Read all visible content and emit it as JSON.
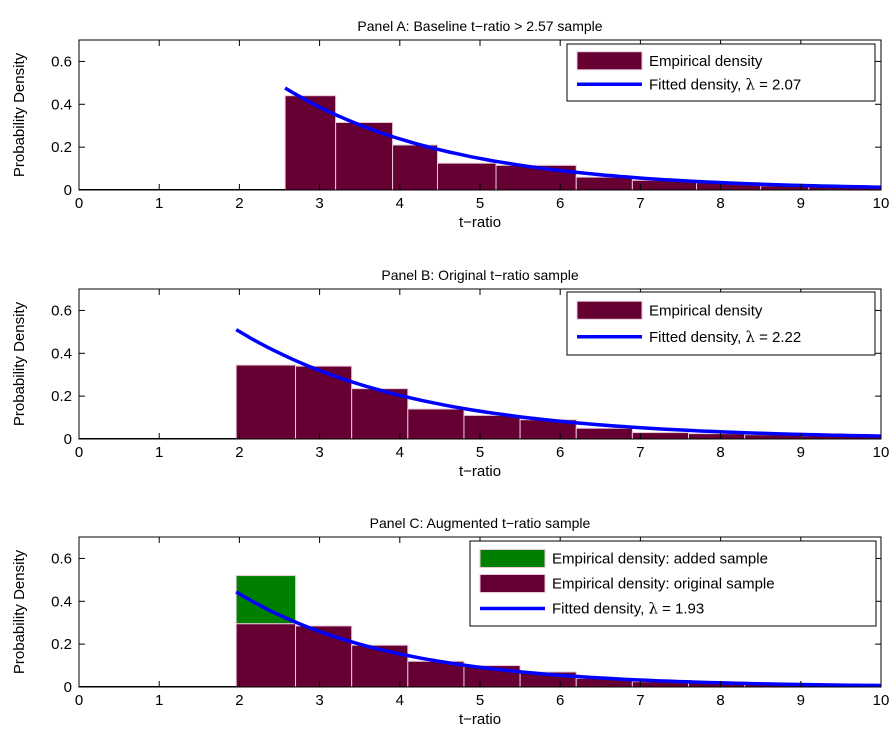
{
  "chart_data": [
    {
      "type": "bar",
      "title": "Panel A: Baseline t−ratio > 2.57 sample",
      "xlabel": "t−ratio",
      "ylabel": "Probability Density",
      "xlim": [
        0,
        10
      ],
      "ylim": [
        0,
        0.7
      ],
      "xticks": [
        "0",
        "1",
        "2",
        "3",
        "4",
        "5",
        "6",
        "7",
        "8",
        "9",
        "10"
      ],
      "yticks": [
        "0",
        "0.2",
        "0.4",
        "0.6"
      ],
      "legend_position": "top-right",
      "bin_edges": [
        2.57,
        3.2,
        3.91,
        4.47,
        5.2,
        6.2,
        6.9,
        7.7,
        8.5,
        9.1,
        10
      ],
      "series": [
        {
          "name": "Empirical density",
          "kind": "histogram",
          "color": "#660033",
          "values": [
            0.44,
            0.315,
            0.21,
            0.125,
            0.115,
            0.06,
            0.045,
            0.035,
            0.02,
            0.015
          ]
        },
        {
          "name": "Fitted density, λ = 2.07",
          "kind": "exp-curve",
          "color": "#0000ff",
          "x_start": 2.57,
          "x_end": 10,
          "lambda": 2.07
        }
      ],
      "legend_labels": [
        {
          "text": "Empirical density"
        },
        {
          "text": "Fitted density, ",
          "lambda": "λ",
          "rest": " = 2.07"
        }
      ]
    },
    {
      "type": "bar",
      "title": "Panel B: Original t−ratio sample",
      "xlabel": "t−ratio",
      "ylabel": "Probability Density",
      "xlim": [
        0,
        10
      ],
      "ylim": [
        0,
        0.7
      ],
      "xticks": [
        "0",
        "1",
        "2",
        "3",
        "4",
        "5",
        "6",
        "7",
        "8",
        "9",
        "10"
      ],
      "yticks": [
        "0",
        "0.2",
        "0.4",
        "0.6"
      ],
      "legend_position": "top-right",
      "bin_edges": [
        1.96,
        2.7,
        3.4,
        4.1,
        4.8,
        5.5,
        6.2,
        6.9,
        7.6,
        8.3,
        9.0,
        10
      ],
      "series": [
        {
          "name": "Empirical density",
          "kind": "histogram",
          "color": "#660033",
          "values": [
            0.345,
            0.34,
            0.235,
            0.14,
            0.11,
            0.09,
            0.05,
            0.03,
            0.025,
            0.02,
            0.015
          ]
        },
        {
          "name": "Fitted density, λ = 2.22",
          "kind": "exp-curve",
          "color": "#0000ff",
          "x_start": 1.96,
          "x_end": 10,
          "lambda": 2.22
        }
      ],
      "legend_labels": [
        {
          "text": "Empirical density"
        },
        {
          "text": "Fitted density, ",
          "lambda": "λ",
          "rest": " = 2.22"
        }
      ]
    },
    {
      "type": "bar",
      "title": "Panel C: Augmented t−ratio sample",
      "xlabel": "t−ratio",
      "ylabel": "Probability Density",
      "xlim": [
        0,
        10
      ],
      "ylim": [
        0,
        0.7
      ],
      "xticks": [
        "0",
        "1",
        "2",
        "3",
        "4",
        "5",
        "6",
        "7",
        "8",
        "9",
        "10"
      ],
      "yticks": [
        "0",
        "0.2",
        "0.4",
        "0.6"
      ],
      "legend_position": "top-right",
      "bin_edges": [
        1.96,
        2.7,
        3.4,
        4.1,
        4.8,
        5.5,
        6.2,
        6.9,
        7.6,
        8.3,
        9.0,
        10
      ],
      "series": [
        {
          "name": "Empirical density: added sample",
          "kind": "histogram-stack",
          "color": "#008000",
          "values": [
            0.225,
            0,
            0,
            0,
            0,
            0,
            0,
            0,
            0,
            0,
            0
          ]
        },
        {
          "name": "Empirical density: original sample",
          "kind": "histogram",
          "color": "#660033",
          "values": [
            0.295,
            0.285,
            0.195,
            0.12,
            0.1,
            0.07,
            0.04,
            0.025,
            0.02,
            0.015,
            0.01
          ]
        },
        {
          "name": "Fitted density, λ = 1.93",
          "kind": "exp-curve",
          "color": "#0000ff",
          "x_start": 1.96,
          "x_end": 10,
          "lambda": 1.93
        }
      ],
      "legend_labels": [
        {
          "text": "Empirical density: added sample"
        },
        {
          "text": "Empirical density: original sample"
        },
        {
          "text": "Fitted density, ",
          "lambda": "λ",
          "rest": " = 1.93"
        }
      ]
    }
  ]
}
